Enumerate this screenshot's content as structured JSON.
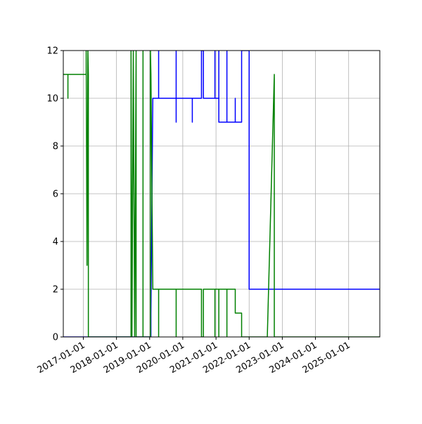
{
  "chart_data": {
    "type": "line",
    "xlim": [
      "2016-05-25",
      "2025-12-10"
    ],
    "ylim": [
      0,
      12
    ],
    "xticks": [
      "2017-01-01",
      "2018-01-01",
      "2019-01-01",
      "2020-01-01",
      "2021-01-01",
      "2022-01-01",
      "2023-01-01",
      "2024-01-01",
      "2025-01-01"
    ],
    "yticks": [
      0,
      2,
      4,
      6,
      8,
      10,
      12
    ],
    "grid": true,
    "series": [
      {
        "color": "#0000ff",
        "x": [
          "2016-05-25",
          "2019-01-15",
          "2019-01-15",
          "2019-02-05",
          "2019-04-10",
          "2019-04-10",
          "2019-04-10",
          "2019-10-20",
          "2019-10-20",
          "2019-10-20",
          "2019-10-20",
          "2020-04-15",
          "2020-04-15",
          "2020-04-15",
          "2020-07-25",
          "2020-07-25",
          "2020-08-15",
          "2020-08-15",
          "2020-12-20",
          "2020-12-20",
          "2020-12-20",
          "2021-02-01",
          "2021-02-01",
          "2021-02-01",
          "2021-05-01",
          "2021-05-01",
          "2021-05-01",
          "2021-08-01",
          "2021-08-01",
          "2021-08-01",
          "2021-10-10",
          "2021-10-10",
          "2022-01-01",
          "2022-01-01",
          "2025-12-10"
        ],
        "values": [
          0,
          0,
          1,
          10,
          10,
          12,
          10,
          10,
          12,
          9,
          10,
          10,
          9,
          10,
          10,
          12,
          12,
          10,
          10,
          12,
          10,
          10,
          12,
          9,
          9,
          12,
          9,
          9,
          10,
          9,
          9,
          12,
          12,
          2,
          2
        ]
      },
      {
        "color": "#008000",
        "x": [
          "2016-05-25",
          "2016-07-15",
          "2016-07-15",
          "2016-07-15",
          "2017-02-01",
          "2017-02-01",
          "2017-02-10",
          "2017-02-20",
          "2017-02-25",
          "2017-02-25",
          "2018-06-10",
          "2018-06-10",
          "2018-06-20",
          "2018-07-05",
          "2018-07-20",
          "2018-08-05",
          "2018-08-05",
          "2018-10-20",
          "2018-10-20",
          "2018-10-20",
          "2019-01-10",
          "2019-01-10",
          "2019-01-15",
          "2019-02-05",
          "2019-04-10",
          "2019-04-10",
          "2019-04-10",
          "2019-10-20",
          "2019-10-20",
          "2019-10-20",
          "2020-07-25",
          "2020-07-25",
          "2020-08-15",
          "2020-08-15",
          "2020-12-20",
          "2020-12-20",
          "2020-12-20",
          "2021-02-01",
          "2021-02-01",
          "2021-02-01",
          "2021-05-01",
          "2021-05-01",
          "2021-05-01",
          "2021-08-01",
          "2021-08-01",
          "2021-10-10",
          "2021-10-10",
          "2022-07-20",
          "2022-10-05",
          "2022-10-05",
          "2025-12-10"
        ],
        "values": [
          11,
          11,
          10,
          11,
          11,
          12,
          3,
          12,
          11,
          0,
          0,
          12,
          0,
          12,
          0,
          12,
          0,
          0,
          12,
          0,
          0,
          12,
          11,
          2,
          2,
          0,
          2,
          2,
          0,
          2,
          2,
          0,
          0,
          2,
          2,
          0,
          2,
          2,
          0,
          2,
          2,
          0,
          2,
          2,
          1,
          1,
          0,
          0,
          11,
          0,
          0
        ]
      }
    ]
  }
}
